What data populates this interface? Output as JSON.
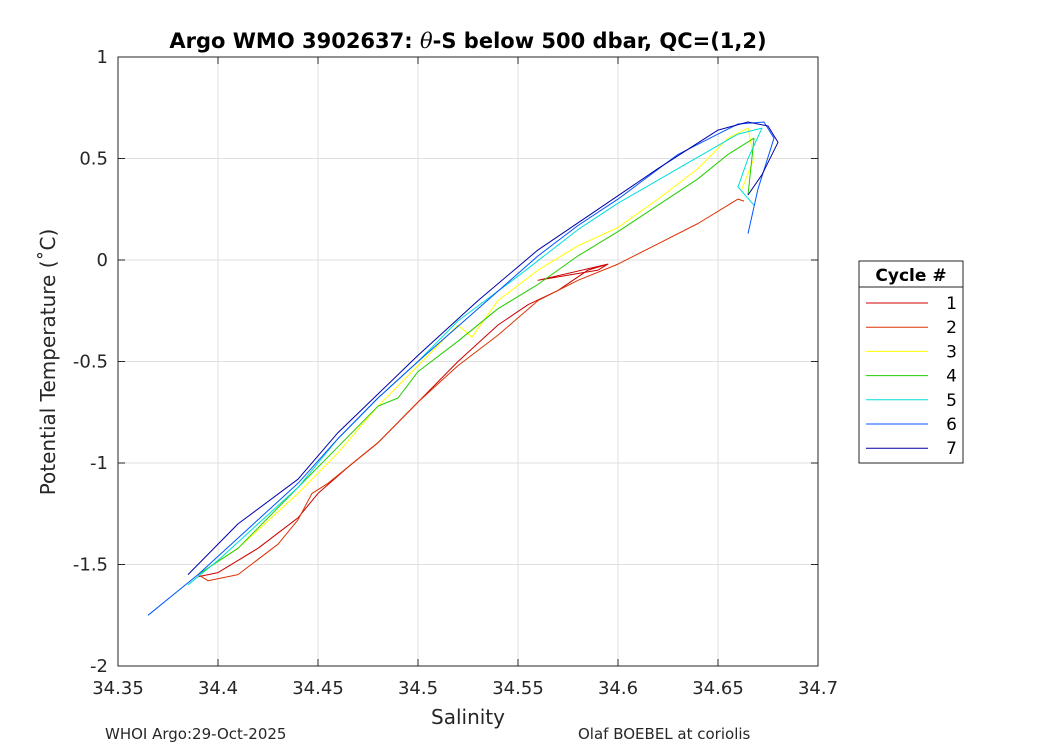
{
  "chart_data": {
    "type": "line",
    "title_prefix": "Argo WMO 3902637: ",
    "title_theta": "θ",
    "title_suffix": "-S below 500 dbar,  QC=(1,2)",
    "xlabel": "Salinity",
    "ylabel": "Potential Temperature (˚C)",
    "xlim": [
      34.35,
      34.7
    ],
    "ylim": [
      -2,
      1
    ],
    "xticks": [
      34.35,
      34.4,
      34.45,
      34.5,
      34.55,
      34.6,
      34.65,
      34.7
    ],
    "xtick_labels": [
      "34.35",
      "34.4",
      "34.45",
      "34.5",
      "34.55",
      "34.6",
      "34.65",
      "34.7"
    ],
    "yticks": [
      -2,
      -1.5,
      -1,
      -0.5,
      0,
      0.5,
      1
    ],
    "ytick_labels": [
      "-2",
      "-1.5",
      "-1",
      "-0.5",
      "0",
      "0.5",
      "1"
    ],
    "grid": true,
    "legend_title": "Cycle #",
    "legend_position": "outside-right",
    "series": [
      {
        "name": "1",
        "color": "#cc0000",
        "points": [
          [
            34.39,
            -1.56
          ],
          [
            34.4,
            -1.54
          ],
          [
            34.42,
            -1.42
          ],
          [
            34.44,
            -1.27
          ],
          [
            34.45,
            -1.15
          ],
          [
            34.465,
            -1.02
          ],
          [
            34.48,
            -0.9
          ],
          [
            34.5,
            -0.7
          ],
          [
            34.52,
            -0.5
          ],
          [
            34.54,
            -0.32
          ],
          [
            34.555,
            -0.22
          ],
          [
            34.57,
            -0.15
          ],
          [
            34.585,
            -0.05
          ],
          [
            34.595,
            -0.02
          ],
          [
            34.56,
            -0.1
          ],
          [
            34.59,
            -0.05
          ],
          [
            34.595,
            -0.02
          ]
        ]
      },
      {
        "name": "2",
        "color": "#dd3300",
        "points": [
          [
            34.39,
            -1.55
          ],
          [
            34.395,
            -1.58
          ],
          [
            34.41,
            -1.55
          ],
          [
            34.43,
            -1.4
          ],
          [
            34.44,
            -1.28
          ],
          [
            34.447,
            -1.15
          ],
          [
            34.455,
            -1.1
          ],
          [
            34.47,
            -0.98
          ],
          [
            34.48,
            -0.9
          ],
          [
            34.5,
            -0.7
          ],
          [
            34.52,
            -0.52
          ],
          [
            34.54,
            -0.37
          ],
          [
            34.56,
            -0.2
          ],
          [
            34.58,
            -0.1
          ],
          [
            34.6,
            -0.02
          ],
          [
            34.62,
            0.08
          ],
          [
            34.64,
            0.18
          ],
          [
            34.655,
            0.27
          ],
          [
            34.66,
            0.3
          ],
          [
            34.663,
            0.29
          ]
        ]
      },
      {
        "name": "3",
        "color": "#ffff00",
        "points": [
          [
            34.39,
            -1.55
          ],
          [
            34.41,
            -1.42
          ],
          [
            34.44,
            -1.15
          ],
          [
            34.46,
            -0.95
          ],
          [
            34.48,
            -0.72
          ],
          [
            34.5,
            -0.52
          ],
          [
            34.52,
            -0.32
          ],
          [
            34.527,
            -0.38
          ],
          [
            34.54,
            -0.2
          ],
          [
            34.56,
            -0.05
          ],
          [
            34.58,
            0.07
          ],
          [
            34.6,
            0.16
          ],
          [
            34.62,
            0.3
          ],
          [
            34.64,
            0.45
          ],
          [
            34.655,
            0.6
          ],
          [
            34.665,
            0.65
          ],
          [
            34.668,
            0.5
          ],
          [
            34.662,
            0.35
          ]
        ]
      },
      {
        "name": "4",
        "color": "#22cc00",
        "points": [
          [
            34.39,
            -1.55
          ],
          [
            34.41,
            -1.42
          ],
          [
            34.44,
            -1.12
          ],
          [
            34.46,
            -0.92
          ],
          [
            34.48,
            -0.72
          ],
          [
            34.49,
            -0.68
          ],
          [
            34.5,
            -0.55
          ],
          [
            34.52,
            -0.4
          ],
          [
            34.54,
            -0.24
          ],
          [
            34.56,
            -0.12
          ],
          [
            34.58,
            0.02
          ],
          [
            34.6,
            0.14
          ],
          [
            34.62,
            0.27
          ],
          [
            34.64,
            0.4
          ],
          [
            34.655,
            0.52
          ],
          [
            34.668,
            0.6
          ],
          [
            34.665,
            0.32
          ]
        ]
      },
      {
        "name": "5",
        "color": "#00dddd",
        "points": [
          [
            34.385,
            -1.6
          ],
          [
            34.4,
            -1.48
          ],
          [
            34.42,
            -1.3
          ],
          [
            34.44,
            -1.12
          ],
          [
            34.46,
            -0.88
          ],
          [
            34.48,
            -0.68
          ],
          [
            34.5,
            -0.5
          ],
          [
            34.52,
            -0.3
          ],
          [
            34.55,
            -0.08
          ],
          [
            34.58,
            0.15
          ],
          [
            34.6,
            0.28
          ],
          [
            34.63,
            0.45
          ],
          [
            34.66,
            0.62
          ],
          [
            34.672,
            0.65
          ],
          [
            34.665,
            0.5
          ],
          [
            34.66,
            0.36
          ],
          [
            34.668,
            0.27
          ]
        ]
      },
      {
        "name": "6",
        "color": "#0055ff",
        "points": [
          [
            34.365,
            -1.75
          ],
          [
            34.39,
            -1.55
          ],
          [
            34.42,
            -1.28
          ],
          [
            34.44,
            -1.1
          ],
          [
            34.46,
            -0.88
          ],
          [
            34.48,
            -0.68
          ],
          [
            34.5,
            -0.5
          ],
          [
            34.53,
            -0.24
          ],
          [
            34.56,
            0.02
          ],
          [
            34.58,
            0.17
          ],
          [
            34.6,
            0.3
          ],
          [
            34.63,
            0.52
          ],
          [
            34.65,
            0.62
          ],
          [
            34.66,
            0.67
          ],
          [
            34.673,
            0.68
          ],
          [
            34.678,
            0.6
          ],
          [
            34.67,
            0.35
          ],
          [
            34.665,
            0.13
          ]
        ]
      },
      {
        "name": "7",
        "color": "#0000aa",
        "points": [
          [
            34.385,
            -1.55
          ],
          [
            34.41,
            -1.3
          ],
          [
            34.44,
            -1.08
          ],
          [
            34.46,
            -0.85
          ],
          [
            34.48,
            -0.66
          ],
          [
            34.5,
            -0.47
          ],
          [
            34.53,
            -0.2
          ],
          [
            34.56,
            0.05
          ],
          [
            34.59,
            0.25
          ],
          [
            34.62,
            0.45
          ],
          [
            34.65,
            0.64
          ],
          [
            34.665,
            0.68
          ],
          [
            34.675,
            0.66
          ],
          [
            34.68,
            0.58
          ],
          [
            34.672,
            0.42
          ],
          [
            34.665,
            0.32
          ]
        ]
      }
    ]
  },
  "footer": {
    "left": "WHOI Argo:29-Oct-2025",
    "right": "Olaf BOEBEL at coriolis"
  }
}
